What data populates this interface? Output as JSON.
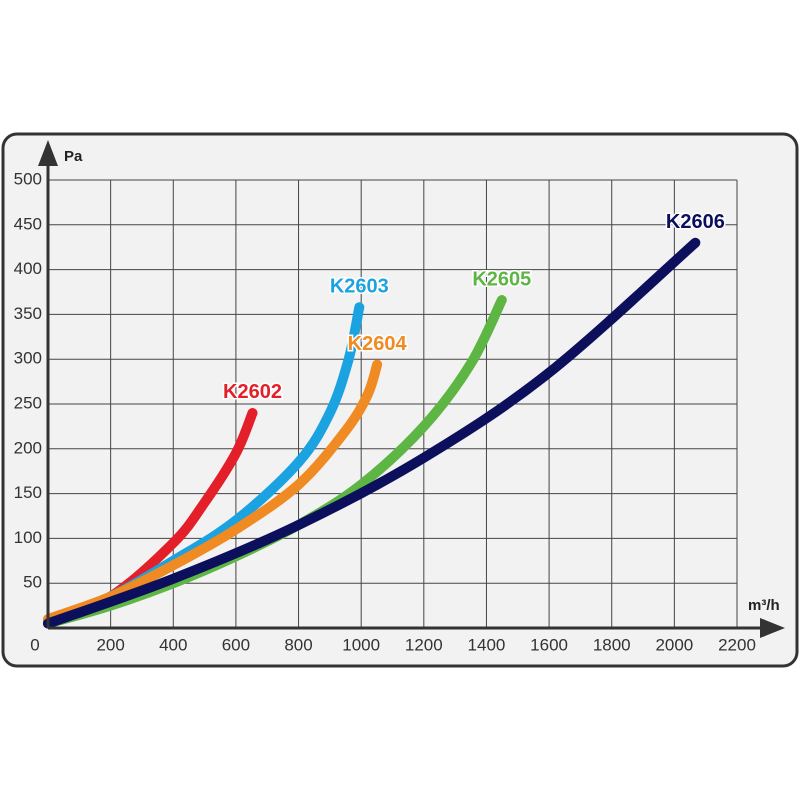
{
  "chart_data": {
    "type": "line",
    "xlabel": "m³/h",
    "ylabel": "Pa",
    "xlim": [
      0,
      2200
    ],
    "ylim": [
      0,
      500
    ],
    "xticks": [
      0,
      200,
      400,
      600,
      800,
      1000,
      1200,
      1400,
      1600,
      1800,
      2000,
      2200
    ],
    "yticks": [
      50,
      100,
      150,
      200,
      250,
      300,
      350,
      400,
      450,
      500
    ],
    "grid": true,
    "series": [
      {
        "name": "K2602",
        "color": "#e3202a",
        "x": [
          0,
          200,
          400,
          500,
          600,
          653
        ],
        "values": [
          5,
          35,
          95,
          140,
          195,
          240
        ]
      },
      {
        "name": "K2603",
        "color": "#1aa3e0",
        "x": [
          0,
          200,
          400,
          600,
          800,
          900,
          960,
          994
        ],
        "values": [
          8,
          35,
          75,
          120,
          185,
          240,
          300,
          358
        ]
      },
      {
        "name": "K2604",
        "color": "#f08a22",
        "x": [
          0,
          200,
          400,
          600,
          800,
          950,
          1020,
          1051
        ],
        "values": [
          10,
          35,
          70,
          110,
          160,
          220,
          260,
          294
        ]
      },
      {
        "name": "K2605",
        "color": "#5db544",
        "x": [
          0,
          200,
          400,
          600,
          800,
          1000,
          1200,
          1350,
          1449
        ],
        "values": [
          5,
          25,
          50,
          80,
          115,
          160,
          225,
          295,
          366
        ]
      },
      {
        "name": "K2606",
        "color": "#0c0f5c",
        "x": [
          0,
          400,
          800,
          1200,
          1600,
          2067
        ],
        "values": [
          5,
          55,
          115,
          190,
          285,
          430
        ]
      }
    ]
  }
}
